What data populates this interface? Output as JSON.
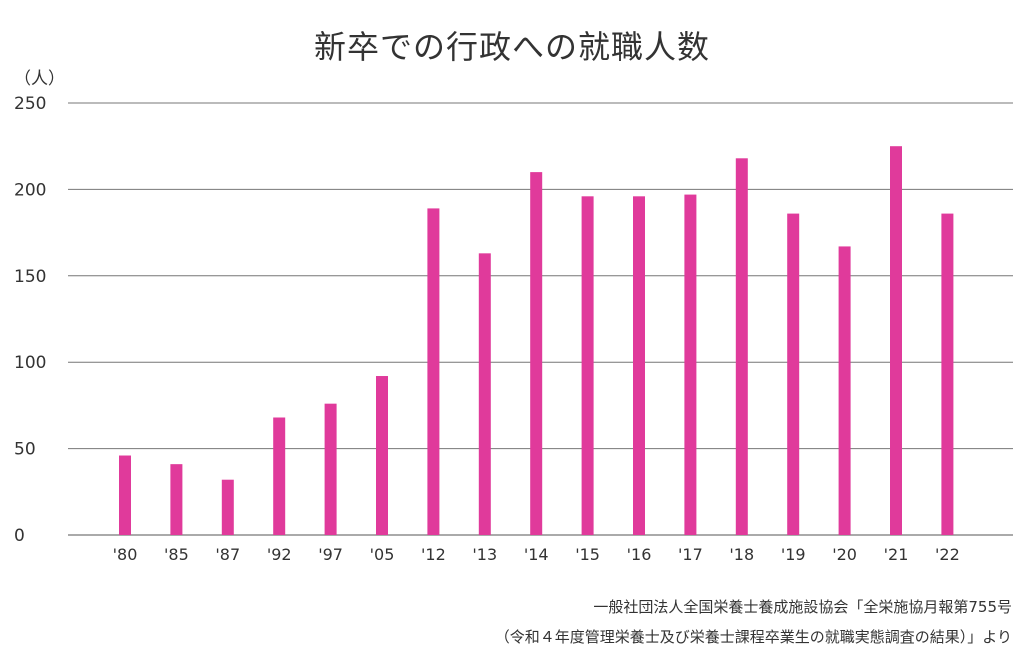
{
  "chart_data": {
    "type": "bar",
    "title": "新卒での行政への就職人数",
    "ylabel": "（人）",
    "xlabel": "",
    "categories": [
      "'80",
      "'85",
      "'87",
      "'92",
      "'97",
      "'05",
      "'12",
      "'13",
      "'14",
      "'15",
      "'16",
      "'17",
      "'18",
      "'19",
      "'20",
      "'21",
      "'22"
    ],
    "values": [
      46,
      41,
      32,
      68,
      76,
      92,
      189,
      163,
      210,
      196,
      196,
      197,
      218,
      186,
      167,
      225,
      186
    ],
    "ylim": [
      0,
      250
    ],
    "yticks": [
      0,
      50,
      100,
      150,
      200,
      250
    ],
    "grid": true,
    "bar_color": "#E03A9B"
  },
  "source": {
    "line1": "一般社団法人全国栄養士養成施設協会「全栄施協月報第755号",
    "line2": "（令和４年度管理栄養士及び栄養士課程卒業生の就職実態調査の結果）」より"
  }
}
